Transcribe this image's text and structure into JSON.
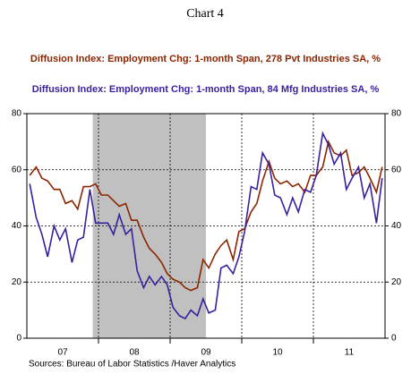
{
  "chart_data": {
    "type": "line",
    "title": "Chart 4",
    "source": "Sources:  Bureau of Labor Statistics /Haver Analytics",
    "x": [
      2007.04,
      2007.13,
      2007.21,
      2007.29,
      2007.38,
      2007.46,
      2007.54,
      2007.63,
      2007.71,
      2007.79,
      2007.88,
      2007.96,
      2008.04,
      2008.13,
      2008.21,
      2008.29,
      2008.38,
      2008.46,
      2008.54,
      2008.63,
      2008.71,
      2008.79,
      2008.88,
      2008.96,
      2009.04,
      2009.13,
      2009.21,
      2009.29,
      2009.38,
      2009.46,
      2009.54,
      2009.63,
      2009.71,
      2009.79,
      2009.88,
      2009.96,
      2010.04,
      2010.13,
      2010.21,
      2010.29,
      2010.38,
      2010.46,
      2010.54,
      2010.63,
      2010.71,
      2010.79,
      2010.88,
      2010.96,
      2011.04,
      2011.13,
      2011.21,
      2011.29,
      2011.38,
      2011.46,
      2011.54,
      2011.63,
      2011.71,
      2011.79,
      2011.88,
      2011.96
    ],
    "series": [
      {
        "name": "Diffusion Index: Employment Chg: 1-month Span, 278 Pvt Industries SA, %",
        "color": "#8b2500",
        "values": [
          58,
          61,
          57,
          56,
          53,
          53,
          48,
          49,
          46,
          54,
          54,
          55,
          51,
          51,
          49,
          47,
          48,
          42,
          42,
          36,
          32,
          30,
          27,
          23,
          21,
          20,
          18,
          17,
          18,
          28,
          25,
          30,
          33,
          35,
          28,
          38,
          39,
          45,
          48,
          56,
          63,
          57,
          55,
          56,
          54,
          55,
          52,
          58,
          58,
          61,
          70,
          66,
          65,
          67,
          58,
          59,
          61,
          57,
          52,
          61
        ]
      },
      {
        "name": "Diffusion Index: Employment Chg: 1-month Span, 84 Mfg Industries SA, %",
        "color": "#3a1f9e",
        "values": [
          55,
          43,
          37,
          29,
          40,
          35,
          39,
          27,
          35,
          36,
          53,
          41,
          41,
          41,
          37,
          44,
          37,
          39,
          24,
          18,
          22,
          19,
          22,
          19,
          11,
          8,
          7,
          10,
          8,
          14,
          9,
          10,
          25,
          26,
          23,
          29,
          38,
          54,
          53,
          66,
          62,
          51,
          50,
          44,
          50,
          45,
          53,
          52,
          58,
          73,
          69,
          62,
          66,
          53,
          57,
          61,
          50,
          55,
          41,
          57
        ]
      }
    ],
    "xlim": [
      2007,
      2012
    ],
    "xticks": [
      {
        "value": 2007.5,
        "label": "07"
      },
      {
        "value": 2008.5,
        "label": "08"
      },
      {
        "value": 2009.5,
        "label": "09"
      },
      {
        "value": 2010.5,
        "label": "10"
      },
      {
        "value": 2011.5,
        "label": "11"
      }
    ],
    "xgrid": [
      2008,
      2009,
      2010,
      2011
    ],
    "shaded": [
      2007.92,
      2009.5
    ],
    "ylim": [
      0,
      80
    ],
    "yticks": [
      0,
      20,
      40,
      60,
      80
    ],
    "y2lim": [
      0,
      80
    ],
    "y2ticks": [
      0,
      20,
      40,
      60,
      80
    ],
    "grid": true
  }
}
